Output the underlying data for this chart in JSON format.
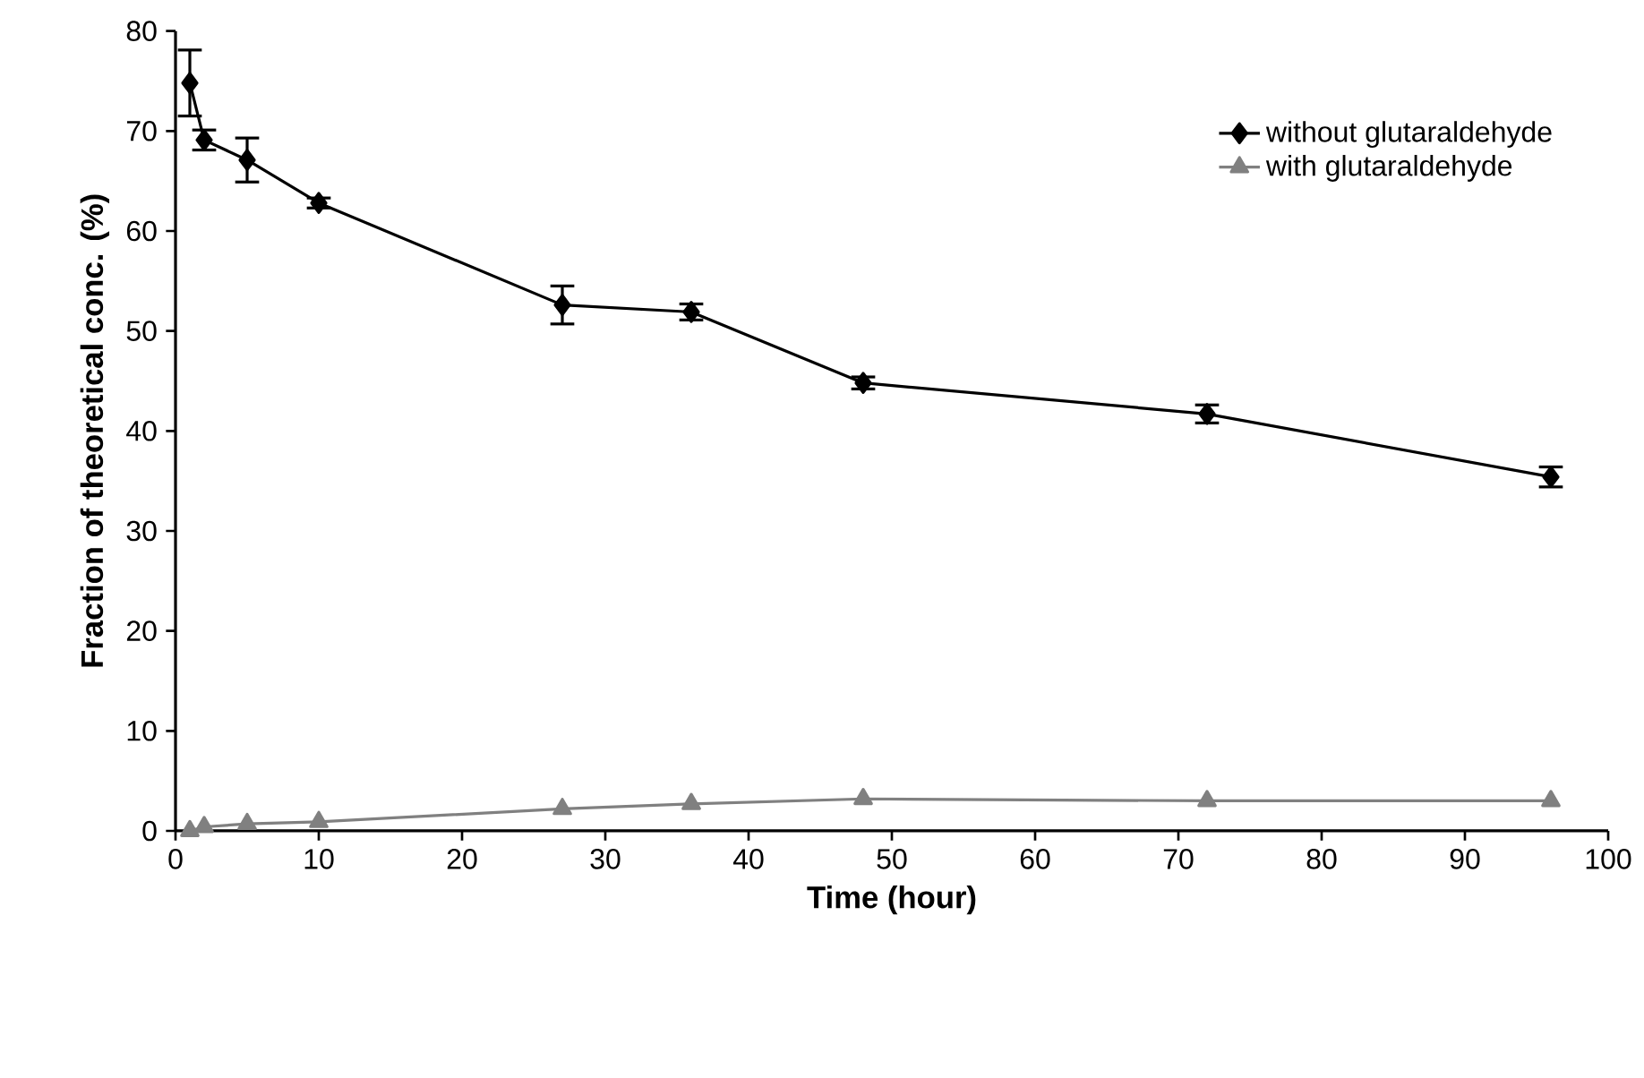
{
  "chart_data": {
    "type": "line",
    "xlabel": "Time (hour)",
    "ylabel": "Fraction of theoretical conc. (%)",
    "xlim": [
      0,
      100
    ],
    "ylim": [
      0,
      80
    ],
    "xticks": [
      0,
      10,
      20,
      30,
      40,
      50,
      60,
      70,
      80,
      90,
      100
    ],
    "yticks": [
      0,
      10,
      20,
      30,
      40,
      50,
      60,
      70,
      80
    ],
    "x": [
      1,
      2,
      5,
      10,
      27,
      36,
      48,
      72,
      96
    ],
    "legend": "top right",
    "grid": false,
    "series": [
      {
        "name": "without glutaraldehyde",
        "color": "#000000",
        "marker": "diamond",
        "values": [
          74.8,
          69.1,
          67.1,
          62.8,
          52.6,
          51.9,
          44.8,
          41.7,
          35.4
        ],
        "errors": [
          3.3,
          1.0,
          2.2,
          0.5,
          1.9,
          0.8,
          0.6,
          0.9,
          1.0
        ]
      },
      {
        "name": "with glutaraldehyde",
        "color": "#808080",
        "marker": "triangle",
        "values": [
          0,
          0.4,
          0.7,
          0.9,
          2.2,
          2.7,
          3.2,
          3.0,
          3.0
        ]
      }
    ]
  }
}
